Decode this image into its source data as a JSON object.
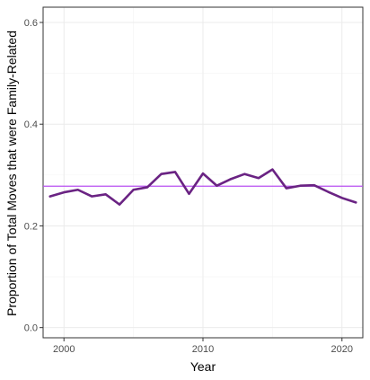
{
  "chart_data": {
    "type": "line",
    "title": "",
    "xlabel": "Year",
    "ylabel": "Proportion of Total Moves that were Family-Related",
    "xlim": [
      1998.5,
      2021.5
    ],
    "ylim": [
      -0.02,
      0.63
    ],
    "x_ticks": [
      2000,
      2010,
      2020
    ],
    "x_tick_labels": [
      "2000",
      "2010",
      "2020"
    ],
    "y_ticks": [
      0.0,
      0.2,
      0.4,
      0.6
    ],
    "y_tick_labels": [
      "0.0",
      "0.2",
      "0.4",
      "0.6"
    ],
    "grid": true,
    "series": [
      {
        "color": "#6a2383",
        "x": [
          1999,
          2000,
          2001,
          2002,
          2003,
          2004,
          2005,
          2006,
          2007,
          2008,
          2009,
          2010,
          2011,
          2012,
          2013,
          2014,
          2015,
          2016,
          2017,
          2018,
          2019,
          2020,
          2021
        ],
        "y": [
          0.258,
          0.266,
          0.271,
          0.258,
          0.262,
          0.242,
          0.271,
          0.276,
          0.302,
          0.306,
          0.263,
          0.303,
          0.279,
          0.292,
          0.302,
          0.294,
          0.311,
          0.274,
          0.279,
          0.28,
          0.267,
          0.255,
          0.246
        ]
      }
    ],
    "reference_line": {
      "y": 0.278,
      "color": "#b84ff0"
    }
  }
}
